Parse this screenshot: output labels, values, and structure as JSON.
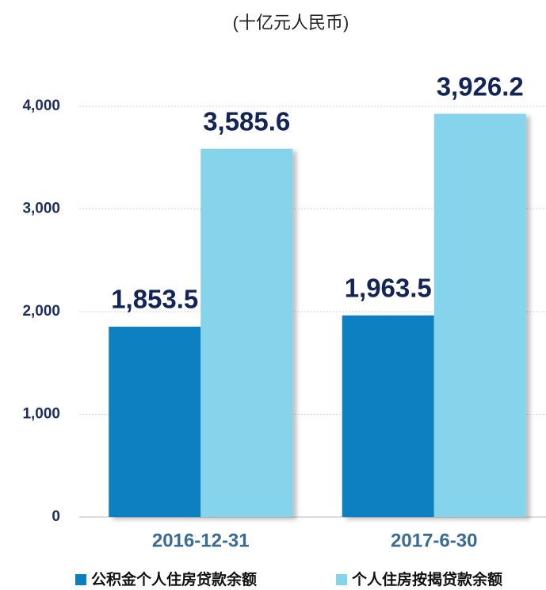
{
  "chart_data": {
    "type": "bar",
    "title": "(十亿元人民币)",
    "categories": [
      "2016-12-31",
      "2017-6-30"
    ],
    "series": [
      {
        "name": "公积金个人住房贷款余额",
        "color": "#0a80c2",
        "values": [
          1853.5,
          1963.5
        ],
        "value_labels": [
          "1,853.5",
          "1,963.5"
        ]
      },
      {
        "name": "个人住房按揭贷款余额",
        "color": "#86d4ec",
        "values": [
          3585.6,
          3926.2
        ],
        "value_labels": [
          "3,585.6",
          "3,926.2"
        ]
      }
    ],
    "ylim": [
      0,
      4000
    ],
    "yticks": [
      0,
      {
        "value": 1000,
        "label": "1,000"
      },
      {
        "value": 2000,
        "label": "2,000"
      },
      {
        "value": 3000,
        "label": "3,000"
      },
      {
        "value": 4000,
        "label": "4,000"
      }
    ],
    "grid": true,
    "legend": "bottom"
  }
}
